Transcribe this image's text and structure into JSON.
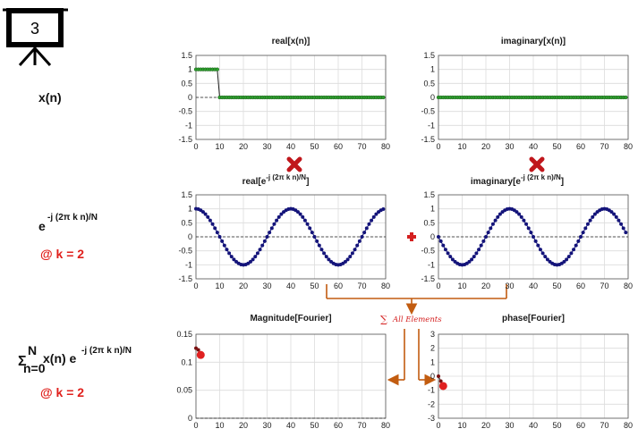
{
  "badge": {
    "number": "3",
    "icon": "presentation-board-icon"
  },
  "row_labels": {
    "signal": "x(n)",
    "kernel": {
      "base": "e",
      "exponent": "-j (2π k n)/N",
      "param": "@ k = 2"
    },
    "sum": {
      "sigma": "Σ",
      "upper": "N",
      "lower": "n=0",
      "body": "x(n) e",
      "exponent": "-j (2π k n)/N",
      "param": "@ k = 2"
    }
  },
  "operators": {
    "multiply_icon": "red-x-multiply-icon",
    "plus_icon": "red-plus-icon",
    "sum_label": "All Elements",
    "sum_symbol": "∑"
  },
  "colors": {
    "signal_line": "#1a1a1a",
    "signal_marker": "#2ea02e",
    "wave_marker": "#14147a",
    "result_marker": "#e02020",
    "arrow": "#c25c10",
    "grid": "#dcdcdc",
    "accent_red": "#e0201c"
  },
  "chart_data": [
    {
      "id": "real_x",
      "type": "line",
      "title": "real[x(n)]",
      "xlim": [
        0,
        80
      ],
      "ylim": [
        -1.5,
        1.5
      ],
      "xticks": [
        "0",
        "10",
        "20",
        "30",
        "40",
        "50",
        "60",
        "70",
        "80"
      ],
      "yticks": [
        "1.5",
        "1",
        "0.5",
        "0",
        "-0.5",
        "-1",
        "-1.5"
      ],
      "grid": true,
      "series": [
        {
          "x_range": [
            0,
            79
          ],
          "values": "1 for n = 0..9, 0 for n = 10..79"
        }
      ]
    },
    {
      "id": "imag_x",
      "type": "line",
      "title": "imaginary[x(n)]",
      "xlim": [
        0,
        80
      ],
      "ylim": [
        -1.5,
        1.5
      ],
      "xticks": [
        "0",
        "10",
        "20",
        "30",
        "40",
        "50",
        "60",
        "70",
        "80"
      ],
      "yticks": [
        "1.5",
        "1",
        "0.5",
        "0",
        "-0.5",
        "-1",
        "-1.5"
      ],
      "grid": true,
      "series": [
        {
          "x_range": [
            0,
            79
          ],
          "values": "0 for all n"
        }
      ]
    },
    {
      "id": "real_kernel",
      "type": "line",
      "title": "real[e",
      "title_exponent": "-j (2π k n)/N",
      "title_close": "]",
      "xlim": [
        0,
        80
      ],
      "ylim": [
        -1.5,
        1.5
      ],
      "xticks": [
        "0",
        "10",
        "20",
        "30",
        "40",
        "50",
        "60",
        "70",
        "80"
      ],
      "yticks": [
        "1.5",
        "1",
        "0.5",
        "0",
        "-0.5",
        "-1",
        "-1.5"
      ],
      "grid": true,
      "series": [
        {
          "x_range": [
            0,
            79
          ],
          "N": 80,
          "k": 2,
          "values": "cos(2π·2·n/80)"
        }
      ]
    },
    {
      "id": "imag_kernel",
      "type": "line",
      "title": "imaginary[e",
      "title_exponent": "-j (2π k n)/N",
      "title_close": "]",
      "xlim": [
        0,
        80
      ],
      "ylim": [
        -1.5,
        1.5
      ],
      "xticks": [
        "0",
        "10",
        "20",
        "30",
        "40",
        "50",
        "60",
        "70",
        "80"
      ],
      "yticks": [
        "1.5",
        "1",
        "0.5",
        "0",
        "-0.5",
        "-1",
        "-1.5"
      ],
      "grid": true,
      "series": [
        {
          "x_range": [
            0,
            79
          ],
          "N": 80,
          "k": 2,
          "values": "-sin(2π·2·n/80)"
        }
      ]
    },
    {
      "id": "magnitude",
      "type": "scatter",
      "title": "Magnitude[Fourier]",
      "xlim": [
        0,
        80
      ],
      "ylim": [
        0,
        0.15
      ],
      "xticks": [
        "0",
        "10",
        "20",
        "30",
        "40",
        "50",
        "60",
        "70",
        "80"
      ],
      "yticks": [
        "0",
        "0.05",
        "0.1",
        "0.15"
      ],
      "grid": true,
      "series": [
        {
          "x": [
            0,
            1,
            2
          ],
          "y": [
            0.125,
            0.122,
            0.113
          ]
        }
      ]
    },
    {
      "id": "phase",
      "type": "scatter",
      "title": "phase[Fourier]",
      "xlim": [
        0,
        80
      ],
      "ylim": [
        -3,
        3
      ],
      "xticks": [
        "0",
        "10",
        "20",
        "30",
        "40",
        "50",
        "60",
        "70",
        "80"
      ],
      "yticks": [
        "3",
        "2",
        "1",
        "0",
        "-1",
        "-2",
        "-3"
      ],
      "grid": true,
      "series": [
        {
          "x": [
            0,
            1,
            2
          ],
          "y": [
            0,
            -0.35,
            -0.7
          ]
        }
      ]
    }
  ]
}
